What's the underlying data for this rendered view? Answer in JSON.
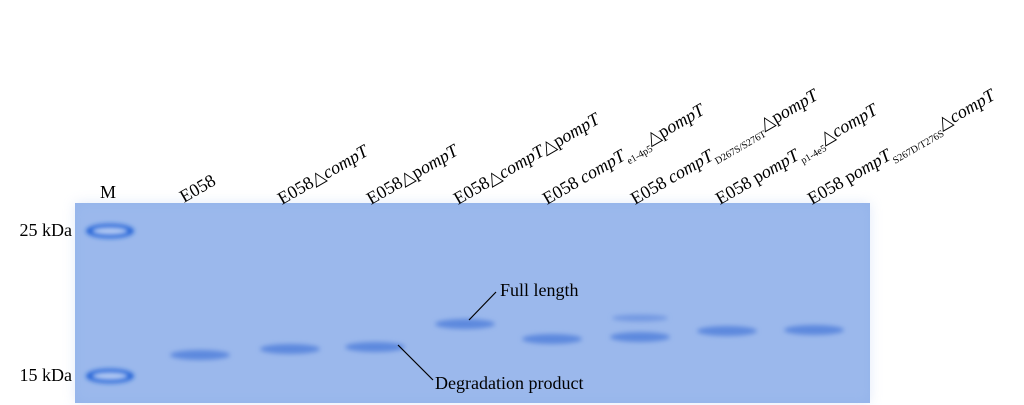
{
  "marker": {
    "label": "M"
  },
  "size_labels": [
    "25 kDa",
    "15 kDa"
  ],
  "lanes": [
    {
      "label": [
        {
          "text": "E058"
        }
      ]
    },
    {
      "label": [
        {
          "text": "E058△"
        },
        {
          "text": "compT",
          "style": "italic"
        }
      ]
    },
    {
      "label": [
        {
          "text": "E058△p"
        },
        {
          "text": "ompT",
          "style": "italic"
        }
      ]
    },
    {
      "label": [
        {
          "text": "E058△"
        },
        {
          "text": "compT",
          "style": "italic"
        },
        {
          "text": "△p"
        },
        {
          "text": "ompT",
          "style": "italic"
        }
      ]
    },
    {
      "label": [
        {
          "text": "E058 "
        },
        {
          "text": "compT",
          "style": "italic"
        },
        {
          "text": "e1-4p5",
          "style": "sub"
        },
        {
          "text": "△p"
        },
        {
          "text": "ompT",
          "style": "italic"
        }
      ]
    },
    {
      "label": [
        {
          "text": "E058 "
        },
        {
          "text": "compT",
          "style": "italic"
        },
        {
          "text": "D267S/S276T",
          "style": "sub"
        },
        {
          "text": "△p"
        },
        {
          "text": "ompT",
          "style": "italic"
        }
      ]
    },
    {
      "label": [
        {
          "text": "E058 p"
        },
        {
          "text": "ompT",
          "style": "italic"
        },
        {
          "text": "p1-4e5",
          "style": "sub"
        },
        {
          "text": "△"
        },
        {
          "text": "compT",
          "style": "italic"
        }
      ]
    },
    {
      "label": [
        {
          "text": "E058 p"
        },
        {
          "text": "ompT",
          "style": "italic"
        },
        {
          "text": "S267D/T276S",
          "style": "sub"
        },
        {
          "text": "△"
        },
        {
          "text": "compT",
          "style": "italic"
        }
      ]
    }
  ],
  "annotations": [
    "Full length",
    "Degradation product"
  ]
}
